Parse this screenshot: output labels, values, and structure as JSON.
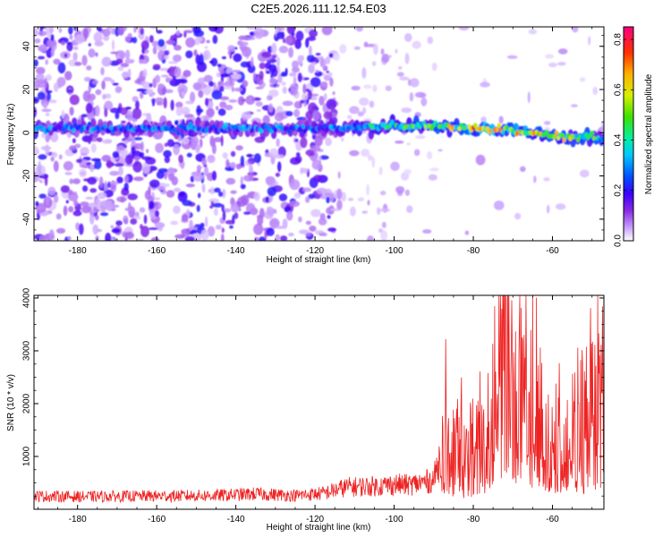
{
  "chart_data": [
    {
      "type": "heatmap",
      "title": "C2E5.2026.111.12.54.E03",
      "xlabel": "Height of straight line (km)",
      "ylabel": "Frequency (Hz)",
      "xlim": [
        -191,
        -47
      ],
      "ylim": [
        -50,
        49
      ],
      "xticks": [
        -180,
        -160,
        -140,
        -120,
        -100,
        -80,
        -60
      ],
      "yticks": [
        -40,
        -20,
        0,
        20,
        40
      ],
      "colorbar": {
        "label": "Normalized spectral amplitude",
        "range": [
          0.0,
          0.85
        ],
        "ticks": [
          "0.0",
          "0.2",
          "0.4",
          "0.6",
          "0.8"
        ],
        "colors": [
          "#ffffff",
          "#c8a2ff",
          "#8a2be2",
          "#3a00ff",
          "#0050ff",
          "#00c8ff",
          "#00f0a0",
          "#40e000",
          "#d8f000",
          "#ffb000",
          "#ff3000",
          "#ff0080"
        ]
      },
      "band": {
        "description_points_x": [
          -191,
          -115,
          -100,
          -90,
          -80,
          -70,
          -60,
          -47
        ],
        "center_frequency_hz": [
          2,
          2,
          3,
          3,
          2,
          1,
          -1,
          -3
        ],
        "peak_amplitude": [
          0.35,
          0.35,
          0.5,
          0.6,
          0.8,
          0.75,
          0.7,
          0.55
        ]
      },
      "noise_regions": [
        {
          "x_range": [
            -191,
            -115
          ],
          "density": "high"
        },
        {
          "x_range": [
            -115,
            -90
          ],
          "density": "low"
        },
        {
          "x_range": [
            -90,
            -47
          ],
          "density": "very low"
        }
      ]
    },
    {
      "type": "line",
      "title": "",
      "xlabel": "Height of straight line (km)",
      "ylabel": "SNR (10 * v/v)",
      "xlim": [
        -191,
        -47
      ],
      "ylim": [
        0,
        4050
      ],
      "xticks": [
        -180,
        -160,
        -140,
        -120,
        -100,
        -80,
        -60
      ],
      "yticks": [
        1000,
        2000,
        3000,
        4000
      ],
      "color": "#ee2222",
      "series": [
        {
          "name": "SNR",
          "x": [
            -191,
            -180,
            -160,
            -145,
            -135,
            -125,
            -118,
            -112,
            -108,
            -104,
            -100,
            -96,
            -92,
            -90,
            -88,
            -87,
            -85,
            -83,
            -80,
            -78,
            -75,
            -73,
            -72,
            -71,
            -70,
            -68,
            -66,
            -64,
            -62,
            -60,
            -58,
            -56,
            -54,
            -52,
            -50,
            -48,
            -47
          ],
          "values": [
            250,
            240,
            250,
            260,
            290,
            260,
            300,
            420,
            430,
            440,
            470,
            460,
            520,
            560,
            1100,
            1650,
            1550,
            1350,
            1600,
            1800,
            2500,
            3500,
            3800,
            4050,
            3300,
            2800,
            2600,
            2700,
            2200,
            2000,
            1900,
            2000,
            1800,
            1900,
            2300,
            2600,
            3000
          ]
        }
      ]
    }
  ]
}
